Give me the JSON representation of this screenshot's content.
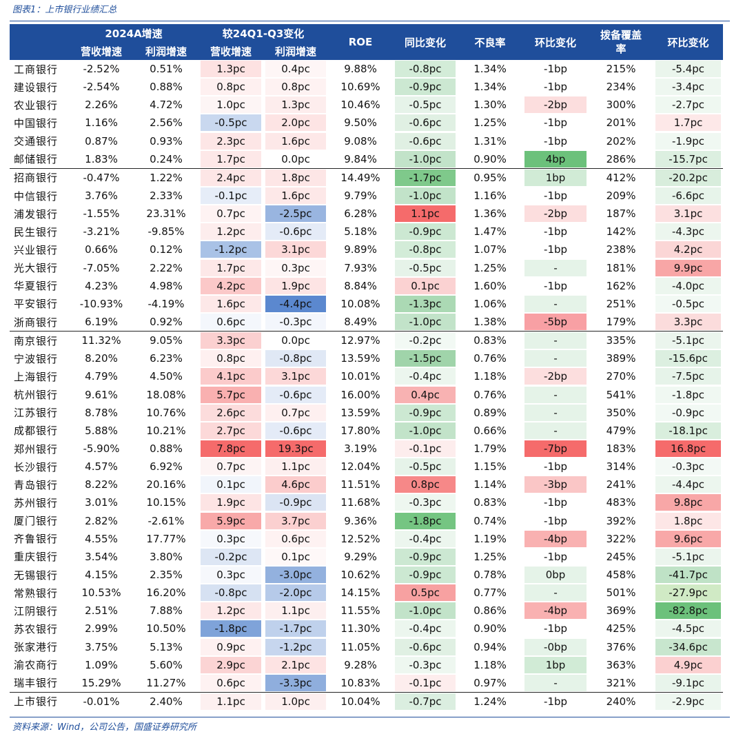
{
  "caption": "图表1：上市银行业绩汇总",
  "source": "资料来源：Wind，公司公告，国盛证券研究所",
  "header": {
    "group1": "2024A增速",
    "group2": "较24Q1-Q3变化",
    "roe": "ROE",
    "yoy": "同比变化",
    "npl": "不良率",
    "qoq1": "环比变化",
    "coverage": "拨备覆盖率",
    "qoq2": "环比变化",
    "sub1": "营收增速",
    "sub2": "利润增速",
    "sub3": "营收增速",
    "sub4": "利润增速"
  },
  "rows": [
    [
      "工商银行",
      "-2.52%",
      "0.51%",
      "1.3pc",
      "0.4pc",
      "9.88%",
      "-0.8pc",
      "1.34%",
      "-1bp",
      "215%",
      "-5.4pc"
    ],
    [
      "建设银行",
      "-2.54%",
      "0.88%",
      "0.8pc",
      "0.8pc",
      "10.69%",
      "-0.9pc",
      "1.34%",
      "-1bp",
      "234%",
      "-3.4pc"
    ],
    [
      "农业银行",
      "2.26%",
      "4.72%",
      "1.0pc",
      "1.3pc",
      "10.46%",
      "-0.5pc",
      "1.30%",
      "-2bp",
      "300%",
      "-2.7pc"
    ],
    [
      "中国银行",
      "1.16%",
      "2.56%",
      "-0.5pc",
      "2.0pc",
      "9.50%",
      "-0.6pc",
      "1.25%",
      "-1bp",
      "201%",
      "1.7pc"
    ],
    [
      "交通银行",
      "0.87%",
      "0.93%",
      "2.3pc",
      "1.6pc",
      "9.08%",
      "-0.6pc",
      "1.31%",
      "-1bp",
      "202%",
      "-1.9pc"
    ],
    [
      "邮储银行",
      "1.83%",
      "0.24%",
      "1.7pc",
      "0.0pc",
      "9.84%",
      "-1.0pc",
      "0.90%",
      "4bp",
      "286%",
      "-15.7pc"
    ],
    [
      "招商银行",
      "-0.47%",
      "1.22%",
      "2.4pc",
      "1.8pc",
      "14.49%",
      "-1.7pc",
      "0.95%",
      "1bp",
      "412%",
      "-20.2pc"
    ],
    [
      "中信银行",
      "3.76%",
      "2.33%",
      "-0.1pc",
      "1.6pc",
      "9.79%",
      "-1.0pc",
      "1.16%",
      "-1bp",
      "209%",
      "-6.6pc"
    ],
    [
      "浦发银行",
      "-1.55%",
      "23.31%",
      "0.7pc",
      "-2.5pc",
      "6.28%",
      "1.1pc",
      "1.36%",
      "-2bp",
      "187%",
      "3.1pc"
    ],
    [
      "民生银行",
      "-3.21%",
      "-9.85%",
      "1.2pc",
      "-0.6pc",
      "5.18%",
      "-0.9pc",
      "1.47%",
      "-1bp",
      "142%",
      "-4.3pc"
    ],
    [
      "兴业银行",
      "0.66%",
      "0.12%",
      "-1.2pc",
      "3.1pc",
      "9.89%",
      "-0.8pc",
      "1.07%",
      "-1bp",
      "238%",
      "4.2pc"
    ],
    [
      "光大银行",
      "-7.05%",
      "2.22%",
      "1.7pc",
      "0.3pc",
      "7.93%",
      "-0.5pc",
      "1.25%",
      "-",
      "181%",
      "9.9pc"
    ],
    [
      "华夏银行",
      "4.23%",
      "4.98%",
      "4.2pc",
      "1.9pc",
      "8.84%",
      "0.1pc",
      "1.60%",
      "-1bp",
      "162%",
      "-4.0pc"
    ],
    [
      "平安银行",
      "-10.93%",
      "-4.19%",
      "1.6pc",
      "-4.4pc",
      "10.08%",
      "-1.3pc",
      "1.06%",
      "-",
      "251%",
      "-0.5pc"
    ],
    [
      "浙商银行",
      "6.19%",
      "0.92%",
      "0.6pc",
      "-0.3pc",
      "8.49%",
      "-1.0pc",
      "1.38%",
      "-5bp",
      "179%",
      "3.3pc"
    ],
    [
      "南京银行",
      "11.32%",
      "9.05%",
      "3.3pc",
      "0.0pc",
      "12.97%",
      "-0.2pc",
      "0.83%",
      "-",
      "335%",
      "-5.1pc"
    ],
    [
      "宁波银行",
      "8.20%",
      "6.23%",
      "0.8pc",
      "-0.8pc",
      "13.59%",
      "-1.5pc",
      "0.76%",
      "-",
      "389%",
      "-15.6pc"
    ],
    [
      "上海银行",
      "4.79%",
      "4.50%",
      "4.1pc",
      "3.1pc",
      "10.01%",
      "-0.4pc",
      "1.18%",
      "-2bp",
      "270%",
      "-7.5pc"
    ],
    [
      "杭州银行",
      "9.61%",
      "18.08%",
      "5.7pc",
      "-0.6pc",
      "16.00%",
      "0.4pc",
      "0.76%",
      "-",
      "541%",
      "-1.8pc"
    ],
    [
      "江苏银行",
      "8.78%",
      "10.76%",
      "2.6pc",
      "0.7pc",
      "13.59%",
      "-0.9pc",
      "0.89%",
      "-",
      "350%",
      "-0.9pc"
    ],
    [
      "成都银行",
      "5.88%",
      "10.21%",
      "2.7pc",
      "-0.6pc",
      "17.80%",
      "-1.0pc",
      "0.66%",
      "-",
      "479%",
      "-18.1pc"
    ],
    [
      "郑州银行",
      "-5.90%",
      "0.88%",
      "7.8pc",
      "19.3pc",
      "3.19%",
      "-0.1pc",
      "1.79%",
      "-7bp",
      "183%",
      "16.8pc"
    ],
    [
      "长沙银行",
      "4.57%",
      "6.92%",
      "0.7pc",
      "1.1pc",
      "12.04%",
      "-0.5pc",
      "1.15%",
      "-1bp",
      "314%",
      "-0.3pc"
    ],
    [
      "青岛银行",
      "8.22%",
      "20.16%",
      "0.1pc",
      "4.6pc",
      "11.51%",
      "0.8pc",
      "1.14%",
      "-3bp",
      "241%",
      "-4.4pc"
    ],
    [
      "苏州银行",
      "3.01%",
      "10.15%",
      "1.9pc",
      "-0.9pc",
      "11.68%",
      "-0.3pc",
      "0.83%",
      "-1bp",
      "483%",
      "9.8pc"
    ],
    [
      "厦门银行",
      "2.82%",
      "-2.61%",
      "5.9pc",
      "3.7pc",
      "9.36%",
      "-1.8pc",
      "0.74%",
      "-1bp",
      "392%",
      "1.8pc"
    ],
    [
      "齐鲁银行",
      "4.55%",
      "17.77%",
      "0.3pc",
      "0.6pc",
      "12.52%",
      "-0.4pc",
      "1.19%",
      "-4bp",
      "322%",
      "9.6pc"
    ],
    [
      "重庆银行",
      "3.54%",
      "3.80%",
      "-0.2pc",
      "0.1pc",
      "9.29%",
      "-0.9pc",
      "1.25%",
      "-1bp",
      "245%",
      "-5.1pc"
    ],
    [
      "无锡银行",
      "4.15%",
      "2.35%",
      "0.3pc",
      "-3.0pc",
      "10.62%",
      "-0.9pc",
      "0.78%",
      "0bp",
      "458%",
      "-41.7pc"
    ],
    [
      "常熟银行",
      "10.53%",
      "16.20%",
      "-0.8pc",
      "-2.0pc",
      "14.15%",
      "0.5pc",
      "0.77%",
      "-",
      "501%",
      "-27.9pc"
    ],
    [
      "江阴银行",
      "2.51%",
      "7.88%",
      "1.2pc",
      "1.1pc",
      "11.55%",
      "-1.0pc",
      "0.86%",
      "-4bp",
      "369%",
      "-82.8pc"
    ],
    [
      "苏农银行",
      "2.99%",
      "10.50%",
      "-1.8pc",
      "-1.7pc",
      "11.30%",
      "-0.4pc",
      "0.90%",
      "-1bp",
      "425%",
      "-4.5pc"
    ],
    [
      "张家港行",
      "3.75%",
      "5.13%",
      "0.9pc",
      "-1.2pc",
      "11.05%",
      "-0.6pc",
      "0.94%",
      "-0bp",
      "376%",
      "-34.6pc"
    ],
    [
      "渝农商行",
      "1.09%",
      "5.60%",
      "2.9pc",
      "2.1pc",
      "9.28%",
      "-0.3pc",
      "1.18%",
      "1bp",
      "363%",
      "4.9pc"
    ],
    [
      "瑞丰银行",
      "15.29%",
      "11.27%",
      "0.6pc",
      "-3.3pc",
      "10.83%",
      "-0.1pc",
      "0.97%",
      "-",
      "321%",
      "-9.1pc"
    ],
    [
      "上市银行",
      "-0.01%",
      "2.40%",
      "1.1pc",
      "1.0pc",
      "10.04%",
      "-0.7pc",
      "1.24%",
      "-1bp",
      "240%",
      "-2.9pc"
    ]
  ],
  "separators_before_rows": [
    6,
    15,
    35
  ],
  "cell_colors": {
    "3": [
      "#fde2e2",
      "#fef0f0",
      "#fdf5f5",
      "#c9d8ef",
      "#fde6e6",
      "#fde8e8",
      "#fde6e6",
      "#e6edf8",
      "#fef3f3",
      "#fdeded",
      "#a9c2e6",
      "#fde8e8",
      "#fbc8c8",
      "#fde8e8",
      "#f4f7fc",
      "#fbd0d0",
      "#fef0f0",
      "#fbcbcb",
      "#f9b0b0",
      "#fcdcdc",
      "#fcd9d9",
      "#f56b6b",
      "#fdf4f4",
      "#f1f5fb",
      "#fde4e4",
      "#f8a9a9",
      "#f6f8fc",
      "#dde6f4",
      "#f6f8fc",
      "#d6e1f2",
      "#fde8e8",
      "#7fa3d9",
      "#fef1f1",
      "#fbd4d4",
      "#fef2f2",
      "#fdf0f0"
    ],
    "4": [
      "#fef6f6",
      "#fef2f2",
      "#fdeded",
      "#fde4e4",
      "#fde8e8",
      "#ffffff",
      "#fde6e6",
      "#fde8e8",
      "#99b5e0",
      "#e4ebf7",
      "#fcd8d8",
      "#fef6f6",
      "#fde4e4",
      "#5b88cf",
      "#f3f6fc",
      "#ffffff",
      "#e0e8f5",
      "#fcd8d8",
      "#e4ebf7",
      "#fef0f0",
      "#e4ebf7",
      "#f56b6b",
      "#fdefef",
      "#fbcccc",
      "#dbe4f3",
      "#fbd0d0",
      "#fef2f2",
      "#fef8f8",
      "#93b1de",
      "#b6cae9",
      "#fdefef",
      "#bfd1ec",
      "#c7d6ee",
      "#fde3e3",
      "#8faedd",
      "#fdefef"
    ],
    "6": [
      "#d3ecd8",
      "#cce8d2",
      "#e6f3e9",
      "#e0f0e3",
      "#e0f0e3",
      "#c2e3c9",
      "#7fc98b",
      "#c2e3c9",
      "#f56b6b",
      "#cce8d2",
      "#d3ecd8",
      "#e6f3e9",
      "#fbd2d2",
      "#abd9b4",
      "#c2e3c9",
      "#f2f9f4",
      "#a0d4aa",
      "#ecf6ee",
      "#f8b2b2",
      "#cce8d2",
      "#c2e3c9",
      "#fdeded",
      "#e6f3e9",
      "#f68888",
      "#eef7f0",
      "#75c582",
      "#ecf6ee",
      "#cce8d2",
      "#cce8d2",
      "#f7a1a1",
      "#c2e3c9",
      "#ecf6ee",
      "#e0f0e3",
      "#eef7f0",
      "#fdeded",
      "#dbeee0"
    ],
    "8": [
      "#ffffff",
      "#ffffff",
      "#fcdede",
      "#ffffff",
      "#ffffff",
      "#6cc17b",
      "#d1ebd6",
      "#ffffff",
      "#fcdede",
      "#ffffff",
      "#ffffff",
      "#e5f3e8",
      "#ffffff",
      "#e5f3e8",
      "#f8a0a4",
      "#e5f3e8",
      "#e5f3e8",
      "#fcdede",
      "#e5f3e8",
      "#e5f3e8",
      "#e5f3e8",
      "#f56b6b",
      "#ffffff",
      "#fac6c6",
      "#ffffff",
      "#ffffff",
      "#f9b1b1",
      "#ffffff",
      "#e5f3e8",
      "#e5f3e8",
      "#f9b1b1",
      "#ffffff",
      "#e5f3e8",
      "#d1ebd6",
      "#e5f3e8",
      "#ffffff"
    ],
    "10": [
      "#eaf5ec",
      "#eef7f0",
      "#eff8f1",
      "#fde8e8",
      "#f0f8f2",
      "#dcefe0",
      "#d8eddc",
      "#e7f4ea",
      "#fce0e0",
      "#ecf6ee",
      "#fbd6d6",
      "#f8a6a6",
      "#ecf6ee",
      "#f2f9f4",
      "#fbdcdc",
      "#ebf5ed",
      "#dcefe0",
      "#e6f3e9",
      "#f0f8f2",
      "#f2f9f4",
      "#d9eedd",
      "#f56b6b",
      "#f3f9f5",
      "#ecf6ee",
      "#f8a7a7",
      "#fde6e6",
      "#f8a8a8",
      "#ebf5ed",
      "#bfe2c6",
      "#d0eac5",
      "#6cc17b",
      "#ecf6ee",
      "#c8e6ce",
      "#fbd0d0",
      "#e8f4eb",
      "#eef7f0"
    ]
  }
}
